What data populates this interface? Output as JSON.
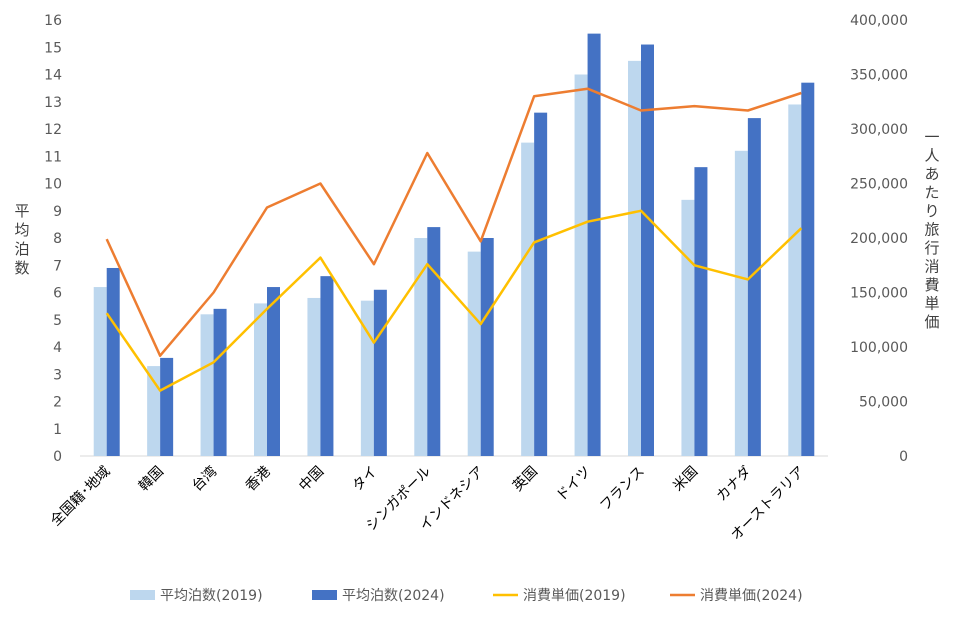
{
  "chart_data": {
    "type": "bar",
    "categories": [
      "全国籍･地域",
      "韓国",
      "台湾",
      "香港",
      "中国",
      "タイ",
      "シンガポール",
      "インドネシア",
      "英国",
      "ドイツ",
      "フランス",
      "米国",
      "カナダ",
      "オーストラリア"
    ],
    "series": [
      {
        "name": "平均泊数(2019)",
        "type": "bar",
        "axis": "left",
        "color": "#bdd7ee",
        "values": [
          6.2,
          3.3,
          5.2,
          5.6,
          5.8,
          5.7,
          8.0,
          7.5,
          11.5,
          14.0,
          14.5,
          9.4,
          11.2,
          12.9
        ]
      },
      {
        "name": "平均泊数(2024)",
        "type": "bar",
        "axis": "left",
        "color": "#4472c4",
        "values": [
          6.9,
          3.6,
          5.4,
          6.2,
          6.6,
          6.1,
          8.4,
          8.0,
          12.6,
          15.5,
          15.1,
          10.6,
          12.4,
          13.7
        ]
      },
      {
        "name": "消費単価(2019)",
        "type": "line",
        "axis": "right",
        "color": "#ffc000",
        "values": [
          131000,
          60000,
          86000,
          135000,
          182000,
          104000,
          176000,
          121000,
          196000,
          215000,
          225000,
          175000,
          162000,
          209000
        ]
      },
      {
        "name": "消費単価(2024)",
        "type": "line",
        "axis": "right",
        "color": "#ed7d31",
        "values": [
          199000,
          92000,
          150000,
          228000,
          250000,
          176000,
          278000,
          197000,
          330000,
          337000,
          317000,
          321000,
          317000,
          333000
        ]
      }
    ],
    "ylabel_left": "平均泊数",
    "ylabel_right": "一人あたり旅行消費単価",
    "ylim_left": [
      0,
      16
    ],
    "ylim_right": [
      0,
      400000
    ],
    "yticks_left": [
      "0",
      "1",
      "2",
      "3",
      "4",
      "5",
      "6",
      "7",
      "8",
      "9",
      "10",
      "11",
      "12",
      "13",
      "14",
      "15",
      "16"
    ],
    "yticks_right": [
      "0",
      "50,000",
      "100,000",
      "150,000",
      "200,000",
      "250,000",
      "300,000",
      "350,000",
      "400,000"
    ],
    "grid": false,
    "legend_position": "bottom"
  }
}
